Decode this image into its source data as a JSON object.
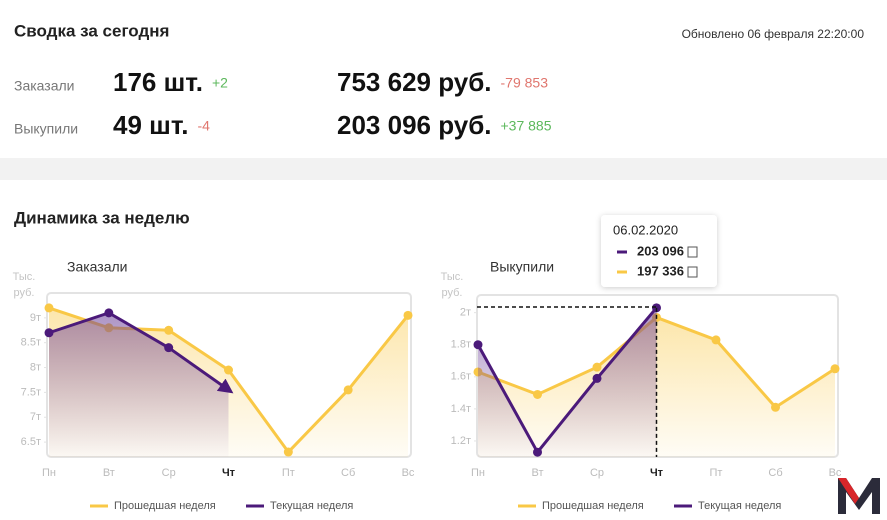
{
  "summary": {
    "title": "Сводка за сегодня",
    "updated": "Обновлено 06 февраля 22:20:00",
    "rows": [
      {
        "label": "Заказали",
        "count": "176 шт.",
        "count_delta": {
          "text": "+2",
          "color": "#5cb85c"
        },
        "sum": "753 629 руб.",
        "sum_delta": {
          "text": "-79 853",
          "color": "#e0766e"
        }
      },
      {
        "label": "Выкупили",
        "count": "49 шт.",
        "count_delta": {
          "text": "-4",
          "color": "#e0766e"
        },
        "sum": "203 096 руб.",
        "sum_delta": {
          "text": "+37 885",
          "color": "#5cb85c"
        }
      }
    ]
  },
  "section_title": "Динамика за неделю",
  "chart_data": [
    {
      "type": "line",
      "title": "Заказали",
      "y_label": [
        "Тыс.",
        "руб."
      ],
      "categories": [
        "Пн",
        "Вт",
        "Ср",
        "Чт",
        "Пт",
        "Сб",
        "Вс"
      ],
      "active_category": 3,
      "series": [
        {
          "name": "Прошедшая неделя",
          "color": "#f9c846",
          "values": [
            9.2,
            8.8,
            8.75,
            7.95,
            6.3,
            7.55,
            9.05
          ]
        },
        {
          "name": "Текущая неделя",
          "color": "#4b1a7a",
          "values": [
            8.7,
            9.1,
            8.4,
            7.55,
            null,
            null,
            null
          ]
        }
      ],
      "ylim": [
        6.2,
        9.5
      ],
      "yticks": [
        {
          "value": 6.5,
          "label": "6.5т"
        },
        {
          "value": 7,
          "label": "7т"
        },
        {
          "value": 7.5,
          "label": "7.5т"
        },
        {
          "value": 8,
          "label": "8т"
        },
        {
          "value": 8.5,
          "label": "8.5т"
        },
        {
          "value": 9,
          "label": "9т"
        }
      ]
    },
    {
      "type": "line",
      "title": "Выкупили",
      "y_label": [
        "Тыс.",
        "руб."
      ],
      "categories": [
        "Пн",
        "Вт",
        "Ср",
        "Чт",
        "Пт",
        "Сб",
        "Вс"
      ],
      "active_category": 3,
      "series": [
        {
          "name": "Прошедшая неделя",
          "color": "#f9c846",
          "values": [
            1.63,
            1.49,
            1.66,
            1.97,
            1.83,
            1.41,
            1.65
          ]
        },
        {
          "name": "Текущая неделя",
          "color": "#4b1a7a",
          "values": [
            1.8,
            1.13,
            1.59,
            2.03,
            null,
            null,
            null
          ]
        }
      ],
      "ylim": [
        1.1,
        2.11
      ],
      "yticks": [
        {
          "value": 1.2,
          "label": "1.2т"
        },
        {
          "value": 1.4,
          "label": "1.4т"
        },
        {
          "value": 1.6,
          "label": "1.6т"
        },
        {
          "value": 1.8,
          "label": "1.8т"
        },
        {
          "value": 2,
          "label": "2т"
        }
      ],
      "tooltip": {
        "title": "06.02.2020",
        "labels": [
          "197 336",
          "203 096"
        ]
      }
    }
  ]
}
